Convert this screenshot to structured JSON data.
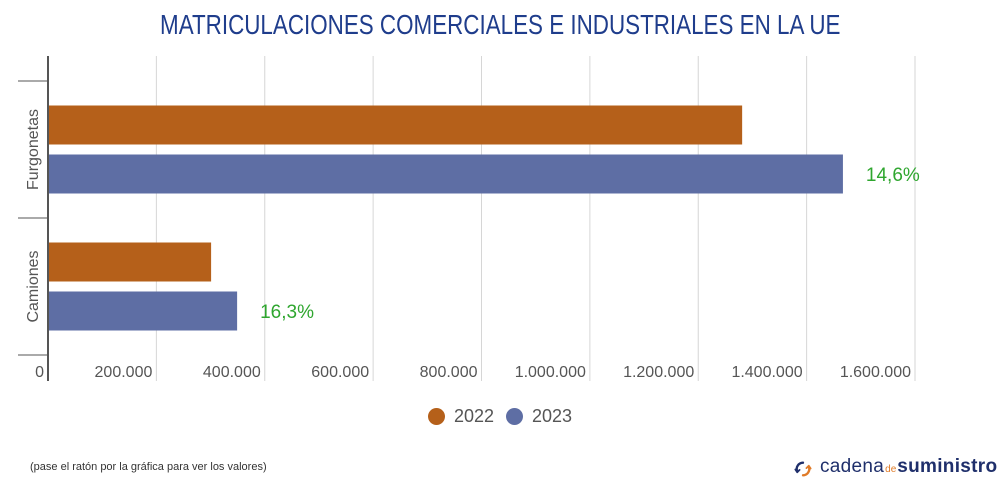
{
  "chart_data": {
    "type": "bar",
    "orientation": "horizontal",
    "title": "MATRICULACIONES COMERCIALES E INDUSTRIALES EN LA UE",
    "categories": [
      "Furgonetas",
      "Camiones"
    ],
    "series": [
      {
        "name": "2022",
        "color": "#b5601a",
        "values": [
          1281000,
          301000
        ]
      },
      {
        "name": "2023",
        "color": "#5e6ea4",
        "values": [
          1467000,
          349000
        ]
      }
    ],
    "annotations": [
      {
        "category": "Furgonetas",
        "series": "2023",
        "text": "14,6%",
        "color": "#2fa62f"
      },
      {
        "category": "Camiones",
        "series": "2023",
        "text": "16,3%",
        "color": "#2fa62f"
      }
    ],
    "xlim": [
      0,
      1600000
    ],
    "xticks": [
      0,
      200000,
      400000,
      600000,
      800000,
      1000000,
      1200000,
      1400000,
      1600000
    ],
    "xtick_labels": [
      "0",
      "200.000",
      "400.000",
      "600.000",
      "800.000",
      "1.000.000",
      "1.200.000",
      "1.400.000",
      "1.600.000"
    ],
    "xlabel": "",
    "ylabel": "",
    "grid": true,
    "legend": "bottom"
  },
  "footer": {
    "note": "(pase el ratón por la gráfica para ver los valores)",
    "logo": {
      "part1": "cadena",
      "part2": "de",
      "part3": "suministro"
    }
  }
}
